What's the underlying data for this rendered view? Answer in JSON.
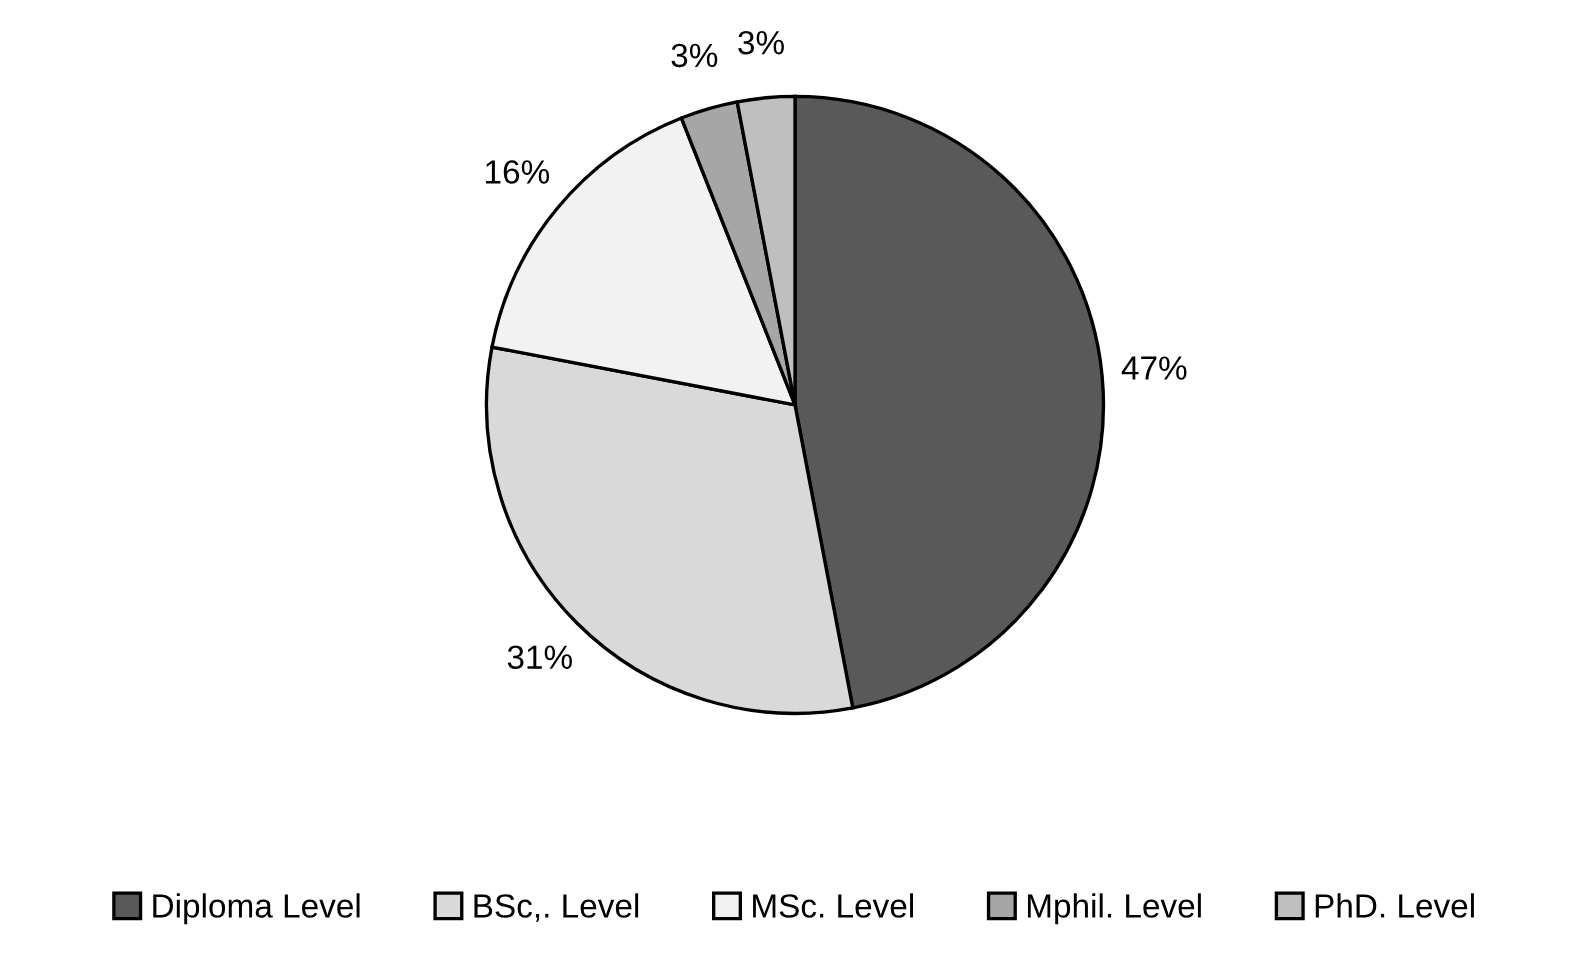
{
  "chart_data": {
    "type": "pie",
    "categories": [
      "Diploma Level",
      "BSc,. Level",
      "MSc. Level",
      "Mphil. Level",
      "PhD. Level"
    ],
    "values": [
      47,
      31,
      16,
      3,
      3
    ],
    "value_labels": [
      "47%",
      "31%",
      "16%",
      "3%",
      "3%"
    ],
    "colors": [
      "#595959",
      "#d9d9d9",
      "#f2f2f2",
      "#a6a6a6",
      "#bfbfbf"
    ],
    "legend": "bottom"
  }
}
